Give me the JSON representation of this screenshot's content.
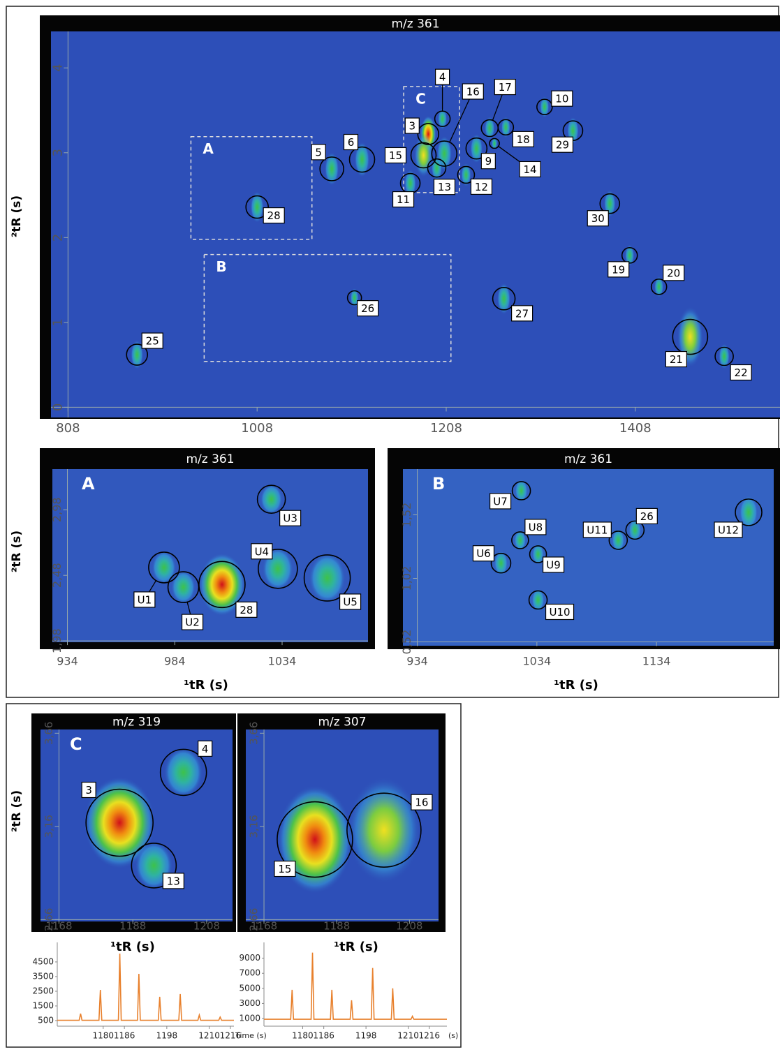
{
  "chart_data": [
    {
      "type": "contour",
      "title": "m/z 361",
      "ylabel": "²tR (s)",
      "xlim": [
        790,
        1561
      ],
      "xticks": [
        808,
        1008,
        1208,
        1408
      ],
      "ylim": [
        -0.12,
        4.43
      ],
      "yticks": [
        0,
        1,
        2,
        3,
        4
      ],
      "regions": [
        {
          "label": "A",
          "x": [
            938,
            1066
          ],
          "y": [
            1.98,
            3.19
          ]
        },
        {
          "label": "B",
          "x": [
            952,
            1213
          ],
          "y": [
            0.54,
            1.8
          ]
        },
        {
          "label": "C",
          "x": [
            1163,
            1222
          ],
          "y": [
            2.53,
            3.78
          ]
        }
      ],
      "peaks": [
        {
          "label": "25",
          "x": 881,
          "y": 0.62
        },
        {
          "label": "28",
          "x": 1008,
          "y": 2.36
        },
        {
          "label": "5",
          "x": 1087,
          "y": 2.81
        },
        {
          "label": "6",
          "x": 1119,
          "y": 2.92
        },
        {
          "label": "3",
          "x": 1189,
          "y": 3.22
        },
        {
          "label": "4",
          "x": 1204,
          "y": 3.4
        },
        {
          "label": "15",
          "x": 1184,
          "y": 2.97
        },
        {
          "label": "16",
          "x": 1206,
          "y": 2.99
        },
        {
          "label": "13",
          "x": 1198,
          "y": 2.82
        },
        {
          "label": "11",
          "x": 1170,
          "y": 2.64
        },
        {
          "label": "12",
          "x": 1229,
          "y": 2.74
        },
        {
          "label": "9",
          "x": 1240,
          "y": 3.05
        },
        {
          "label": "17",
          "x": 1254,
          "y": 3.29
        },
        {
          "label": "18",
          "x": 1271,
          "y": 3.3
        },
        {
          "label": "14",
          "x": 1259,
          "y": 3.11
        },
        {
          "label": "10",
          "x": 1312,
          "y": 3.54
        },
        {
          "label": "29",
          "x": 1342,
          "y": 3.26
        },
        {
          "label": "30",
          "x": 1381,
          "y": 2.4
        },
        {
          "label": "19",
          "x": 1402,
          "y": 1.79
        },
        {
          "label": "20",
          "x": 1433,
          "y": 1.42
        },
        {
          "label": "21",
          "x": 1466,
          "y": 0.83
        },
        {
          "label": "22",
          "x": 1502,
          "y": 0.6
        },
        {
          "label": "27",
          "x": 1269,
          "y": 1.28
        },
        {
          "label": "26",
          "x": 1111,
          "y": 1.29
        }
      ]
    },
    {
      "type": "contour",
      "title": "m/z 361",
      "panel": "A",
      "ylabel": "²tR (s)",
      "xlabel": "¹tR (s)",
      "xlim": [
        927,
        1074
      ],
      "xticks": [
        934,
        984,
        1034
      ],
      "ylim": [
        1.97,
        3.29
      ],
      "yticks": [
        {
          "value": 1.98,
          "label": "1,98"
        },
        {
          "value": 2.48,
          "label": "2,48"
        },
        {
          "value": 2.98,
          "label": "2,98"
        }
      ],
      "peaks": [
        {
          "label": "U1",
          "x": 979,
          "y": 2.54
        },
        {
          "label": "U2",
          "x": 988,
          "y": 2.39
        },
        {
          "label": "28",
          "x": 1006,
          "y": 2.41
        },
        {
          "label": "U3",
          "x": 1029,
          "y": 3.06
        },
        {
          "label": "U4",
          "x": 1032,
          "y": 2.53
        },
        {
          "label": "U5",
          "x": 1055,
          "y": 2.46
        }
      ]
    },
    {
      "type": "contour",
      "title": "m/z 361",
      "panel": "B",
      "xlabel": "¹tR (s)",
      "xlim": [
        922,
        1232
      ],
      "xticks": [
        934,
        1034,
        1134
      ],
      "ylim": [
        0.49,
        1.88
      ],
      "yticks": [
        {
          "value": 0.52,
          "label": "0,52"
        },
        {
          "value": 1.02,
          "label": "1,02"
        },
        {
          "value": 1.52,
          "label": "1,52"
        }
      ],
      "peaks": [
        {
          "label": "U7",
          "x": 1021,
          "y": 1.71
        },
        {
          "label": "U8",
          "x": 1020,
          "y": 1.32
        },
        {
          "label": "U6",
          "x": 1004,
          "y": 1.14
        },
        {
          "label": "U9",
          "x": 1035,
          "y": 1.21
        },
        {
          "label": "U10",
          "x": 1035,
          "y": 0.85
        },
        {
          "label": "U11",
          "x": 1102,
          "y": 1.32
        },
        {
          "label": "26",
          "x": 1116,
          "y": 1.4
        },
        {
          "label": "U12",
          "x": 1211,
          "y": 1.54
        }
      ]
    },
    {
      "type": "contour",
      "title": "m/z 319",
      "panel": "C",
      "ylabel": "²tR (s)",
      "xlabel": "¹tR (s)",
      "xlim": [
        1163,
        1215
      ],
      "xticks": [
        1168,
        1188,
        1208
      ],
      "ylim": [
        2.65,
        3.68
      ],
      "yticks": [
        {
          "value": 2.66,
          "label": "2,66"
        },
        {
          "value": 3.16,
          "label": "3,16"
        },
        {
          "value": 3.66,
          "label": "3,66"
        }
      ],
      "peaks": [
        {
          "label": "3",
          "x": 1184.4,
          "y": 3.18
        },
        {
          "label": "4",
          "x": 1201.7,
          "y": 3.45
        },
        {
          "label": "13",
          "x": 1193.7,
          "y": 2.95
        }
      ]
    },
    {
      "type": "contour",
      "title": "m/z 307",
      "xlabel": "¹tR (s)",
      "xlim": [
        1163,
        1216
      ],
      "xticks": [
        1168,
        1188,
        1208
      ],
      "ylim": [
        2.65,
        3.68
      ],
      "yticks": [
        {
          "value": 2.66,
          "label": "2,66"
        },
        {
          "value": 3.16,
          "label": "3,16"
        },
        {
          "value": 3.66,
          "label": "3,66"
        }
      ],
      "peaks": [
        {
          "label": "15",
          "x": 1182,
          "y": 3.09
        },
        {
          "label": "16",
          "x": 1201,
          "y": 3.14
        }
      ]
    },
    {
      "type": "line",
      "xlabel": "Time (s)",
      "color": "#e8802c",
      "xlim": [
        1167,
        1217
      ],
      "xticks": [
        1180,
        1186,
        1198,
        1210,
        1216
      ],
      "ylim": [
        120,
        5830
      ],
      "yticks": [
        500,
        1500,
        2500,
        3500,
        4500
      ],
      "x": [
        1167,
        1173.2,
        1173.6,
        1174.0,
        1178.8,
        1179.2,
        1179.6,
        1184.3,
        1184.7,
        1185.1,
        1189.7,
        1190.1,
        1190.5,
        1195.6,
        1196.0,
        1196.4,
        1201.4,
        1201.8,
        1202.2,
        1206.8,
        1207.2,
        1207.6,
        1212.7,
        1213.1,
        1213.5,
        1217
      ],
      "values": [
        520,
        520,
        976,
        520,
        520,
        2595,
        520,
        520,
        5070,
        520,
        520,
        3690,
        520,
        520,
        2120,
        520,
        520,
        2310,
        520,
        520,
        880,
        520,
        520,
        740,
        520,
        520
      ]
    },
    {
      "type": "line",
      "xlabel": "(s)",
      "color": "#e8802c",
      "xlim": [
        1169,
        1221
      ],
      "xticks": [
        1180,
        1186,
        1198,
        1210,
        1216
      ],
      "ylim": [
        -20,
        11100
      ],
      "yticks": [
        1000,
        3000,
        5000,
        7000,
        9000
      ],
      "x": [
        1169,
        1176.6,
        1177.0,
        1177.4,
        1182.4,
        1182.8,
        1183.2,
        1187.9,
        1188.3,
        1188.7,
        1193.5,
        1193.9,
        1194.3,
        1199.5,
        1199.9,
        1200.3,
        1205.2,
        1205.6,
        1206.0,
        1210.8,
        1211.2,
        1211.6,
        1221
      ],
      "values": [
        900,
        900,
        4810,
        900,
        900,
        9740,
        900,
        900,
        4810,
        900,
        900,
        3420,
        900,
        900,
        7700,
        900,
        900,
        5000,
        900,
        900,
        1300,
        900,
        900
      ]
    }
  ]
}
